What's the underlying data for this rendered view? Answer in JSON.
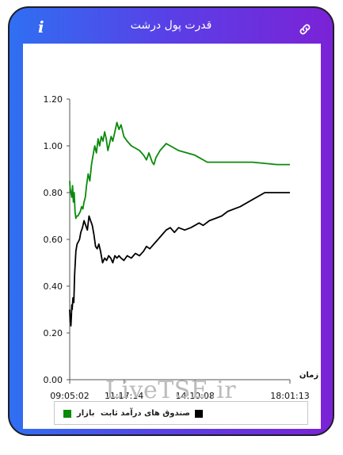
{
  "header": {
    "title": "قدرت پول درشت",
    "info_icon": "info-icon",
    "link_icon": "link-icon"
  },
  "watermark": "LiveTSE.ir",
  "colors": {
    "market": "#0a8a0a",
    "fixed_income": "#000000",
    "gradient_start": "#2f6ff2",
    "gradient_end": "#7b22d6"
  },
  "legend": {
    "market": "بازار",
    "fixed_income": "صندوق های درآمد ثابت"
  },
  "chart_data": {
    "type": "line",
    "xlabel": "زمان",
    "ylabel": "",
    "ylim": [
      0,
      1.2
    ],
    "y_ticks": [
      "0.00",
      "0.20",
      "0.40",
      "0.60",
      "0.80",
      "1.00",
      "1.20"
    ],
    "x_ticks": [
      "09:05:02",
      "11:17:14",
      "14:10:08",
      "18:01:13"
    ],
    "x_range": [
      "09:05:02",
      "18:01:13"
    ],
    "grid": false,
    "legend_position": "bottom",
    "series": [
      {
        "name": "بازار",
        "color": "#0a8a0a",
        "x": [
          "09:05:02",
          "09:06",
          "09:08",
          "09:10",
          "09:12",
          "09:14",
          "09:16",
          "09:18",
          "09:20",
          "09:22",
          "09:25",
          "09:28",
          "09:31",
          "09:34",
          "09:37",
          "09:40",
          "09:43",
          "09:46",
          "09:50",
          "09:54",
          "09:58",
          "10:02",
          "10:06",
          "10:10",
          "10:14",
          "10:18",
          "10:22",
          "10:26",
          "10:30",
          "10:34",
          "10:38",
          "10:42",
          "10:46",
          "10:50",
          "10:55",
          "11:00",
          "11:05",
          "11:10",
          "11:17",
          "11:25",
          "11:35",
          "11:45",
          "11:55",
          "12:05",
          "12:12",
          "12:18",
          "12:22",
          "12:26",
          "12:30",
          "12:35",
          "12:45",
          "13:00",
          "13:30",
          "14:10",
          "14:40",
          "15:30",
          "16:30",
          "17:30",
          "18:01:13"
        ],
        "values": [
          0.85,
          0.82,
          0.8,
          0.78,
          0.83,
          0.76,
          0.8,
          0.72,
          0.69,
          0.7,
          0.7,
          0.71,
          0.72,
          0.74,
          0.73,
          0.76,
          0.78,
          0.83,
          0.88,
          0.85,
          0.92,
          0.96,
          1.0,
          0.97,
          1.03,
          1.0,
          1.04,
          1.02,
          1.06,
          1.03,
          0.98,
          1.01,
          1.04,
          1.02,
          1.06,
          1.1,
          1.07,
          1.09,
          1.04,
          1.02,
          1.0,
          0.99,
          0.98,
          0.96,
          0.94,
          0.97,
          0.95,
          0.93,
          0.92,
          0.95,
          0.98,
          1.01,
          0.98,
          0.96,
          0.93,
          0.93,
          0.93,
          0.92,
          0.92
        ]
      },
      {
        "name": "صندوق های درآمد ثابت",
        "color": "#000000",
        "x": [
          "09:05:02",
          "09:06",
          "09:07",
          "09:08",
          "09:09",
          "09:10",
          "09:11",
          "09:13",
          "09:15",
          "09:17",
          "09:20",
          "09:23",
          "09:26",
          "09:29",
          "09:32",
          "09:36",
          "09:40",
          "09:44",
          "09:48",
          "09:52",
          "09:56",
          "10:00",
          "10:04",
          "10:08",
          "10:12",
          "10:16",
          "10:20",
          "10:25",
          "10:30",
          "10:35",
          "10:40",
          "10:45",
          "10:50",
          "10:55",
          "11:00",
          "11:05",
          "11:10",
          "11:17",
          "11:25",
          "11:35",
          "11:45",
          "11:55",
          "12:05",
          "12:12",
          "12:20",
          "12:30",
          "12:40",
          "12:50",
          "13:00",
          "13:10",
          "13:20",
          "13:30",
          "13:45",
          "14:00",
          "14:10",
          "14:20",
          "14:30",
          "14:45",
          "15:00",
          "15:15",
          "15:30",
          "16:00",
          "16:30",
          "17:00",
          "17:30",
          "18:01:13"
        ],
        "values": [
          0.3,
          0.25,
          0.28,
          0.23,
          0.27,
          0.32,
          0.3,
          0.35,
          0.33,
          0.45,
          0.55,
          0.58,
          0.59,
          0.6,
          0.63,
          0.65,
          0.68,
          0.66,
          0.64,
          0.7,
          0.68,
          0.66,
          0.62,
          0.57,
          0.56,
          0.58,
          0.55,
          0.5,
          0.52,
          0.51,
          0.53,
          0.52,
          0.5,
          0.53,
          0.52,
          0.53,
          0.52,
          0.51,
          0.53,
          0.52,
          0.54,
          0.53,
          0.55,
          0.57,
          0.56,
          0.58,
          0.6,
          0.62,
          0.64,
          0.65,
          0.63,
          0.65,
          0.64,
          0.65,
          0.66,
          0.67,
          0.66,
          0.68,
          0.69,
          0.7,
          0.72,
          0.74,
          0.77,
          0.8,
          0.8,
          0.8
        ]
      }
    ]
  }
}
